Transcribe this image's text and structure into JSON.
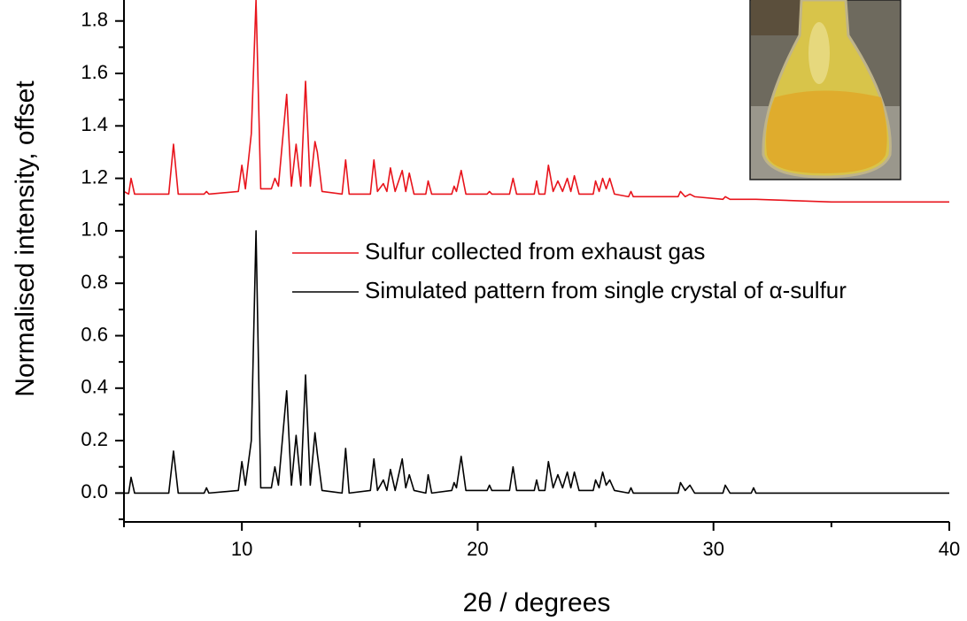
{
  "chart_data": {
    "type": "line",
    "x_label": "2θ / degrees",
    "y_label": "Normalised intensity, offset",
    "xlim": [
      5,
      40
    ],
    "xticks": [
      10,
      20,
      30,
      40
    ],
    "ylim": [
      -0.11,
      1.88
    ],
    "yticks": [
      {
        "value": 0,
        "label": "0.0"
      },
      0.2,
      0.4,
      0.6,
      0.8,
      {
        "value": 1,
        "label": "1.0"
      },
      1.2,
      1.4,
      1.6,
      1.8
    ],
    "legend": "center right",
    "x": [
      5.0,
      5.2,
      5.3,
      5.45,
      6.9,
      7.1,
      7.3,
      8.4,
      8.5,
      8.6,
      9.85,
      10.0,
      10.15,
      10.4,
      10.6,
      10.8,
      11.25,
      11.4,
      11.55,
      11.9,
      12.1,
      12.3,
      12.5,
      12.7,
      12.9,
      13.1,
      13.2,
      13.4,
      14.25,
      14.4,
      14.55,
      15.45,
      15.6,
      15.75,
      16.0,
      16.15,
      16.3,
      16.5,
      16.8,
      16.95,
      17.1,
      17.3,
      17.8,
      17.9,
      18.05,
      18.9,
      19.0,
      19.1,
      19.3,
      19.5,
      20.4,
      20.5,
      20.6,
      21.35,
      21.5,
      21.65,
      22.4,
      22.5,
      22.6,
      22.85,
      23.0,
      23.2,
      23.4,
      23.6,
      23.8,
      23.95,
      24.1,
      24.3,
      24.9,
      25.0,
      25.15,
      25.3,
      25.45,
      25.6,
      25.8,
      26.4,
      26.5,
      26.6,
      28.5,
      28.6,
      28.8,
      29.0,
      29.2,
      30.4,
      30.5,
      30.7,
      31.6,
      31.7,
      31.8,
      35,
      40
    ],
    "series": [
      {
        "name": "Sulfur collected from exhaust gas",
        "color": "#e8141c",
        "values": [
          1.15,
          1.14,
          1.2,
          1.14,
          1.14,
          1.33,
          1.14,
          1.14,
          1.15,
          1.14,
          1.15,
          1.25,
          1.16,
          1.37,
          1.88,
          1.16,
          1.16,
          1.2,
          1.17,
          1.52,
          1.17,
          1.33,
          1.17,
          1.57,
          1.17,
          1.34,
          1.3,
          1.15,
          1.14,
          1.27,
          1.14,
          1.14,
          1.27,
          1.15,
          1.18,
          1.15,
          1.24,
          1.15,
          1.23,
          1.15,
          1.22,
          1.14,
          1.14,
          1.19,
          1.14,
          1.14,
          1.17,
          1.15,
          1.23,
          1.14,
          1.14,
          1.15,
          1.14,
          1.14,
          1.2,
          1.14,
          1.14,
          1.19,
          1.14,
          1.14,
          1.25,
          1.15,
          1.19,
          1.15,
          1.2,
          1.15,
          1.21,
          1.14,
          1.14,
          1.19,
          1.15,
          1.2,
          1.16,
          1.2,
          1.14,
          1.13,
          1.15,
          1.13,
          1.13,
          1.15,
          1.13,
          1.14,
          1.13,
          1.12,
          1.13,
          1.12,
          1.12,
          1.12,
          1.12,
          1.11,
          1.11
        ]
      },
      {
        "name": "Simulated pattern from single crystal of α-sulfur",
        "color": "#000000",
        "values": [
          0.0,
          0.0,
          0.06,
          0.0,
          0.0,
          0.16,
          0.0,
          0.0,
          0.02,
          0.0,
          0.01,
          0.12,
          0.03,
          0.2,
          1.0,
          0.02,
          0.02,
          0.1,
          0.03,
          0.39,
          0.03,
          0.22,
          0.03,
          0.45,
          0.03,
          0.23,
          0.15,
          0.01,
          0.0,
          0.17,
          0.0,
          0.01,
          0.13,
          0.01,
          0.05,
          0.01,
          0.09,
          0.01,
          0.13,
          0.02,
          0.07,
          0.01,
          0.0,
          0.07,
          0.0,
          0.01,
          0.04,
          0.02,
          0.14,
          0.01,
          0.01,
          0.03,
          0.01,
          0.01,
          0.1,
          0.01,
          0.01,
          0.05,
          0.01,
          0.01,
          0.12,
          0.02,
          0.07,
          0.02,
          0.08,
          0.02,
          0.08,
          0.01,
          0.01,
          0.05,
          0.02,
          0.08,
          0.03,
          0.05,
          0.01,
          0.0,
          0.02,
          0.0,
          0.0,
          0.04,
          0.01,
          0.03,
          0.0,
          0.0,
          0.03,
          0.0,
          0.0,
          0.02,
          0.0,
          0.0,
          0.0
        ]
      }
    ]
  }
}
